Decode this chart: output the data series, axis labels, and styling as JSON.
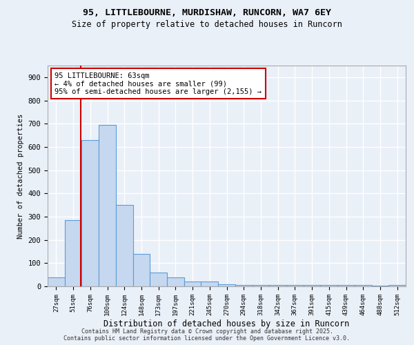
{
  "title1": "95, LITTLEBOURNE, MURDISHAW, RUNCORN, WA7 6EY",
  "title2": "Size of property relative to detached houses in Runcorn",
  "xlabel": "Distribution of detached houses by size in Runcorn",
  "ylabel": "Number of detached properties",
  "categories": [
    "27sqm",
    "51sqm",
    "76sqm",
    "100sqm",
    "124sqm",
    "148sqm",
    "173sqm",
    "197sqm",
    "221sqm",
    "245sqm",
    "270sqm",
    "294sqm",
    "318sqm",
    "342sqm",
    "367sqm",
    "391sqm",
    "415sqm",
    "439sqm",
    "464sqm",
    "488sqm",
    "512sqm"
  ],
  "values": [
    40,
    285,
    630,
    695,
    350,
    140,
    60,
    40,
    22,
    20,
    10,
    7,
    7,
    6,
    6,
    5,
    5,
    5,
    5,
    4,
    5
  ],
  "bar_color": "#c5d8f0",
  "bar_edge_color": "#5b9bd5",
  "background_color": "#eaf0f8",
  "grid_color": "#ffffff",
  "red_line_x": 1.44,
  "annotation_text": "95 LITTLEBOURNE: 63sqm\n← 4% of detached houses are smaller (99)\n95% of semi-detached houses are larger (2,155) →",
  "annotation_box_color": "#ffffff",
  "annotation_box_edge": "#cc0000",
  "footer1": "Contains HM Land Registry data © Crown copyright and database right 2025.",
  "footer2": "Contains public sector information licensed under the Open Government Licence v3.0.",
  "ylim": [
    0,
    950
  ],
  "yticks": [
    0,
    100,
    200,
    300,
    400,
    500,
    600,
    700,
    800,
    900
  ]
}
